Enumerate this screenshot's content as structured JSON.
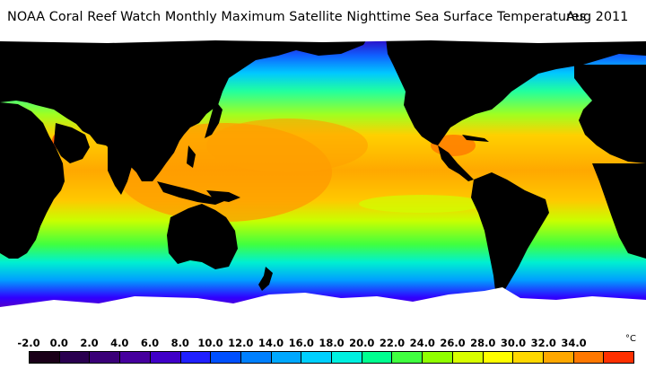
{
  "title": "NOAA Coral Reef Watch Monthly Maximum Satellite Nighttime Sea Surface Temperatures",
  "date": "Aug 2011",
  "legend": {
    "ticks": [
      "-2.0",
      "0.0",
      "2.0",
      "4.0",
      "6.0",
      "8.0",
      "10.0",
      "12.0",
      "14.0",
      "16.0",
      "18.0",
      "20.0",
      "22.0",
      "24.0",
      "26.0",
      "28.0",
      "30.0",
      "32.0",
      "34.0"
    ],
    "unit": "°C",
    "swatch_colors": [
      "#1a0018",
      "#2a0050",
      "#3a0078",
      "#46009e",
      "#4000c8",
      "#2020ff",
      "#0050ff",
      "#0080ff",
      "#00a8ff",
      "#00d0ff",
      "#00f0e0",
      "#00ff90",
      "#40ff40",
      "#90ff00",
      "#d8ff00",
      "#ffff00",
      "#ffd800",
      "#ffa800",
      "#ff7800",
      "#ff3000"
    ]
  },
  "map": {
    "land_color": "#000000",
    "ice_color": "#ffffff",
    "ocean_gradient": [
      "#6a00b0",
      "#3000ff",
      "#00a0ff",
      "#00ffc0",
      "#40ff40",
      "#c8ff00",
      "#ffd800",
      "#ffa000"
    ]
  }
}
